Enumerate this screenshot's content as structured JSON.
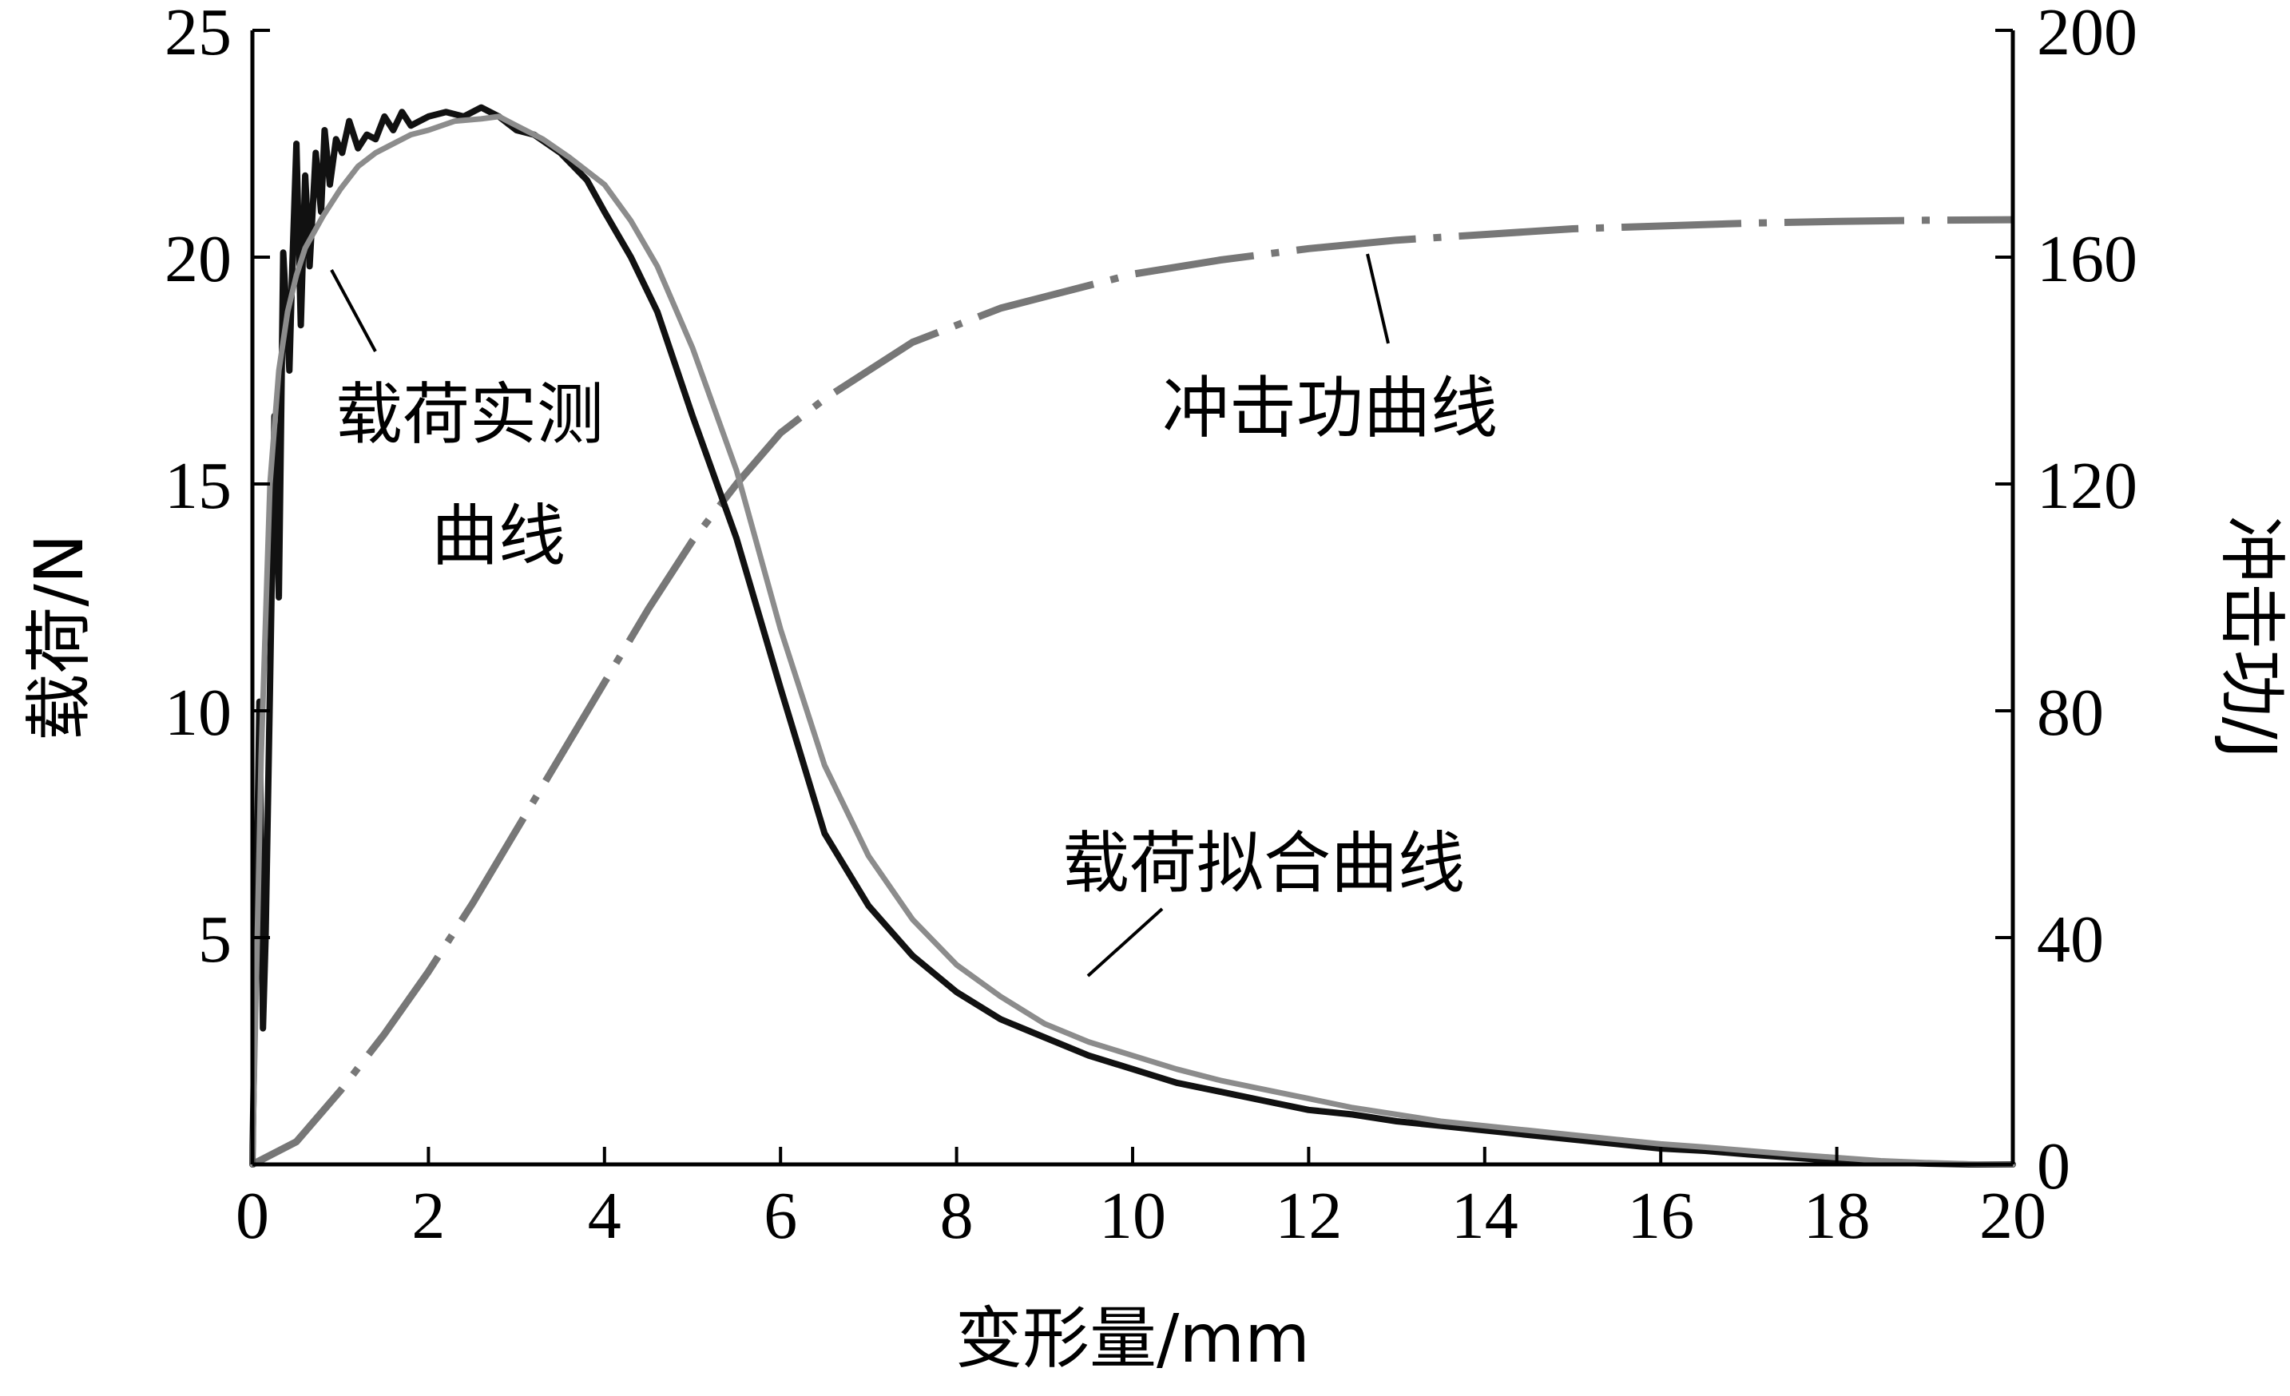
{
  "chart_data": {
    "type": "line",
    "xlabel": "变形量/mm",
    "ylabel_left": "载荷/N",
    "ylabel_right": "冲击功/J",
    "xlim": [
      0,
      20
    ],
    "ylim_left": [
      0,
      25
    ],
    "ylim_right": [
      0,
      200
    ],
    "x_ticks": [
      "0",
      "2",
      "4",
      "6",
      "8",
      "10",
      "12",
      "14",
      "16",
      "18",
      "20"
    ],
    "y_left_ticks": [
      "5",
      "10",
      "15",
      "20",
      "25"
    ],
    "y_right_ticks": [
      "0",
      "40",
      "80",
      "120",
      "160",
      "200"
    ],
    "x_tick_values": [
      0,
      2,
      4,
      6,
      8,
      10,
      12,
      14,
      16,
      18,
      20
    ],
    "y_left_tick_values": [
      5,
      10,
      15,
      20,
      25
    ],
    "y_right_tick_values": [
      0,
      40,
      80,
      120,
      160,
      200
    ],
    "grid": false,
    "annotations": {
      "measured_line1": "载荷实测",
      "measured_line2": "曲线",
      "fitted": "载荷拟合曲线",
      "energy": "冲击功曲线"
    },
    "series": [
      {
        "axis": "left",
        "style": "solid-black-noisy",
        "color": "#111111",
        "x": [
          0,
          0.08,
          0.12,
          0.15,
          0.2,
          0.25,
          0.3,
          0.35,
          0.42,
          0.45,
          0.5,
          0.55,
          0.6,
          0.65,
          0.72,
          0.78,
          0.82,
          0.88,
          0.95,
          1.02,
          1.1,
          1.2,
          1.3,
          1.4,
          1.5,
          1.6,
          1.7,
          1.8,
          1.9,
          2.0,
          2.2,
          2.4,
          2.6,
          2.8,
          3.0,
          3.2,
          3.5,
          3.8,
          4.0,
          4.3,
          4.6,
          5.0,
          5.5,
          6.0,
          6.5,
          7.0,
          7.5,
          8.0,
          8.5,
          9.0,
          9.5,
          10,
          10.5,
          11,
          11.5,
          12,
          12.5,
          13,
          13.5,
          14,
          14.5,
          15,
          15.5,
          16,
          16.5,
          17,
          17.5,
          18,
          18.5,
          19,
          19.5,
          20
        ],
        "y": [
          0,
          10.2,
          3.0,
          5.0,
          10.5,
          16.5,
          12.5,
          20.1,
          17.5,
          19.6,
          22.5,
          18.5,
          21.8,
          19.8,
          22.3,
          21.0,
          22.8,
          21.6,
          22.6,
          22.3,
          23.0,
          22.4,
          22.7,
          22.6,
          23.1,
          22.8,
          23.2,
          22.9,
          23.0,
          23.1,
          23.2,
          23.1,
          23.3,
          23.1,
          22.8,
          22.7,
          22.3,
          21.7,
          21.0,
          20.0,
          18.8,
          16.5,
          13.8,
          10.5,
          7.3,
          5.7,
          4.6,
          3.8,
          3.2,
          2.8,
          2.4,
          2.1,
          1.8,
          1.6,
          1.4,
          1.2,
          1.1,
          0.95,
          0.85,
          0.75,
          0.65,
          0.55,
          0.45,
          0.35,
          0.3,
          0.22,
          0.15,
          0.08,
          0.05,
          0.02,
          0.0,
          0.0
        ]
      },
      {
        "axis": "left",
        "style": "solid-grey-smooth",
        "color": "#8c8c8c",
        "x": [
          0,
          0.1,
          0.2,
          0.3,
          0.4,
          0.5,
          0.6,
          0.8,
          1.0,
          1.2,
          1.4,
          1.6,
          1.8,
          2.0,
          2.3,
          2.6,
          2.8,
          3.0,
          3.3,
          3.6,
          4.0,
          4.3,
          4.6,
          5.0,
          5.5,
          6.0,
          6.5,
          7.0,
          7.5,
          8.0,
          8.5,
          9.0,
          9.5,
          10,
          10.5,
          11,
          11.5,
          12,
          12.5,
          13,
          13.5,
          14,
          14.5,
          15,
          15.5,
          16,
          16.5,
          17,
          17.5,
          18,
          18.5,
          19,
          19.5,
          20
        ],
        "y": [
          0,
          9.0,
          15.0,
          17.5,
          18.8,
          19.6,
          20.2,
          20.9,
          21.5,
          22.0,
          22.3,
          22.5,
          22.7,
          22.8,
          23.0,
          23.05,
          23.1,
          22.9,
          22.6,
          22.2,
          21.6,
          20.8,
          19.8,
          18.0,
          15.3,
          11.8,
          8.8,
          6.8,
          5.4,
          4.4,
          3.7,
          3.1,
          2.7,
          2.4,
          2.1,
          1.85,
          1.65,
          1.45,
          1.25,
          1.1,
          0.95,
          0.85,
          0.75,
          0.65,
          0.55,
          0.45,
          0.38,
          0.3,
          0.22,
          0.15,
          0.08,
          0.04,
          0.01,
          0.0
        ]
      },
      {
        "axis": "right",
        "style": "dashdot-grey",
        "color": "#777777",
        "x": [
          0,
          0.5,
          1,
          1.5,
          2,
          2.5,
          3,
          3.5,
          4,
          4.5,
          5,
          5.5,
          6,
          6.5,
          7,
          7.5,
          8,
          8.5,
          9,
          9.5,
          10,
          11,
          12,
          13,
          14,
          15,
          16,
          17,
          18,
          19,
          20
        ],
        "y": [
          0,
          4,
          13,
          23,
          34,
          46,
          59,
          72,
          85,
          98,
          110,
          120,
          129,
          135,
          140,
          145,
          148,
          151,
          153,
          155,
          157,
          159.5,
          161.5,
          163,
          164,
          165,
          165.5,
          166,
          166.3,
          166.5,
          166.6
        ]
      }
    ]
  }
}
